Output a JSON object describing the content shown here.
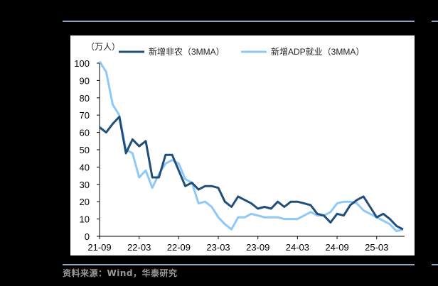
{
  "chart_data": {
    "type": "line",
    "title": "",
    "unit_label": "（万人）",
    "xlabel": "",
    "ylabel": "万人",
    "ylim": [
      0,
      100
    ],
    "yticks": [
      0,
      10,
      20,
      30,
      40,
      50,
      60,
      70,
      80,
      90,
      100
    ],
    "xtick_labels": [
      "21-09",
      "22-03",
      "22-09",
      "23-03",
      "23-09",
      "24-03",
      "24-09",
      "25-03"
    ],
    "grid": false,
    "legend_position": "top",
    "x": [
      "21-09",
      "21-10",
      "21-11",
      "21-12",
      "22-01",
      "22-02",
      "22-03",
      "22-04",
      "22-05",
      "22-06",
      "22-07",
      "22-08",
      "22-09",
      "22-10",
      "22-11",
      "22-12",
      "23-01",
      "23-02",
      "23-03",
      "23-04",
      "23-05",
      "23-06",
      "23-07",
      "23-08",
      "23-09",
      "23-10",
      "23-11",
      "23-12",
      "24-01",
      "24-02",
      "24-03",
      "24-04",
      "24-05",
      "24-06",
      "24-07",
      "24-08",
      "24-09",
      "24-10",
      "24-11",
      "24-12",
      "25-01",
      "25-02",
      "25-03",
      "25-04",
      "25-05",
      "25-06",
      "25-07"
    ],
    "series": [
      {
        "name": "新增非农（3MMA）",
        "color": "#1f4e79",
        "values": [
          63,
          60,
          65,
          69,
          48,
          56,
          52,
          55,
          34,
          34,
          47,
          47,
          38,
          29,
          31,
          27,
          29,
          29,
          28,
          20,
          17,
          23,
          21,
          19,
          16,
          17,
          16,
          20,
          17,
          20,
          20,
          19,
          18,
          13,
          12,
          8,
          13,
          12,
          18,
          21,
          23,
          17,
          11,
          13,
          10,
          6,
          4
        ]
      },
      {
        "name": "新增ADP就业（3MMA）",
        "color": "#8ec8f8",
        "values": [
          101,
          95,
          76,
          70,
          50,
          48,
          34,
          38,
          28,
          36,
          42,
          44,
          42,
          33,
          31,
          19,
          20,
          17,
          11,
          7,
          4,
          11,
          11,
          13,
          12,
          11,
          11,
          11,
          10,
          10,
          10,
          12,
          14,
          12,
          12,
          14,
          19,
          20,
          20,
          19,
          15,
          13,
          11,
          9,
          7,
          3,
          4
        ]
      }
    ]
  },
  "source": "资料来源：Wind，华泰研究"
}
